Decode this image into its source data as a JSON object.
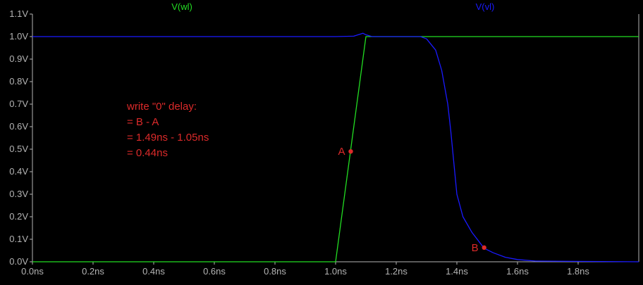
{
  "chart_data": {
    "type": "line",
    "xlim": [
      0.0,
      2.0
    ],
    "ylim": [
      0.0,
      1.1
    ],
    "x_unit": "ns",
    "y_unit": "V",
    "x_ticks": [
      "0.0ns",
      "0.2ns",
      "0.4ns",
      "0.6ns",
      "0.8ns",
      "1.0ns",
      "1.2ns",
      "1.4ns",
      "1.6ns",
      "1.8ns"
    ],
    "x_tick_values": [
      0.0,
      0.2,
      0.4,
      0.6,
      0.8,
      1.0,
      1.2,
      1.4,
      1.6,
      1.8
    ],
    "y_ticks": [
      "0.0V",
      "0.1V",
      "0.2V",
      "0.3V",
      "0.4V",
      "0.5V",
      "0.6V",
      "0.7V",
      "0.8V",
      "0.9V",
      "1.0V",
      "1.1V"
    ],
    "y_tick_values": [
      0.0,
      0.1,
      0.2,
      0.3,
      0.4,
      0.5,
      0.6,
      0.7,
      0.8,
      0.9,
      1.0,
      1.1
    ],
    "grid": false,
    "series": [
      {
        "name": "V(wl)",
        "color": "#22dd22",
        "points": [
          [
            0.0,
            0.0
          ],
          [
            1.0,
            0.0
          ],
          [
            1.05,
            0.5
          ],
          [
            1.1,
            1.0
          ],
          [
            2.0,
            1.0
          ]
        ]
      },
      {
        "name": "V(vl)",
        "color": "#1a1aff",
        "points": [
          [
            0.0,
            1.0
          ],
          [
            1.0,
            1.0
          ],
          [
            1.06,
            1.002
          ],
          [
            1.09,
            1.015
          ],
          [
            1.1,
            1.008
          ],
          [
            1.12,
            1.0
          ],
          [
            1.28,
            1.0
          ],
          [
            1.3,
            0.99
          ],
          [
            1.33,
            0.94
          ],
          [
            1.35,
            0.85
          ],
          [
            1.37,
            0.7
          ],
          [
            1.38,
            0.58
          ],
          [
            1.39,
            0.44
          ],
          [
            1.4,
            0.3
          ],
          [
            1.42,
            0.2
          ],
          [
            1.45,
            0.13
          ],
          [
            1.49,
            0.06
          ],
          [
            1.52,
            0.04
          ],
          [
            1.56,
            0.02
          ],
          [
            1.6,
            0.01
          ],
          [
            1.66,
            0.003
          ],
          [
            2.0,
            0.0
          ]
        ]
      }
    ],
    "markers": [
      {
        "label": "A",
        "x": 1.05,
        "y": 0.49
      },
      {
        "label": "B",
        "x": 1.49,
        "y": 0.063
      }
    ],
    "annotation_lines": [
      "write \"0\" delay:",
      "= B - A",
      "= 1.49ns - 1.05ns",
      "= 0.44ns"
    ],
    "annotation_color": "#dc2a2a",
    "axis_color": "#b4b4b4"
  }
}
